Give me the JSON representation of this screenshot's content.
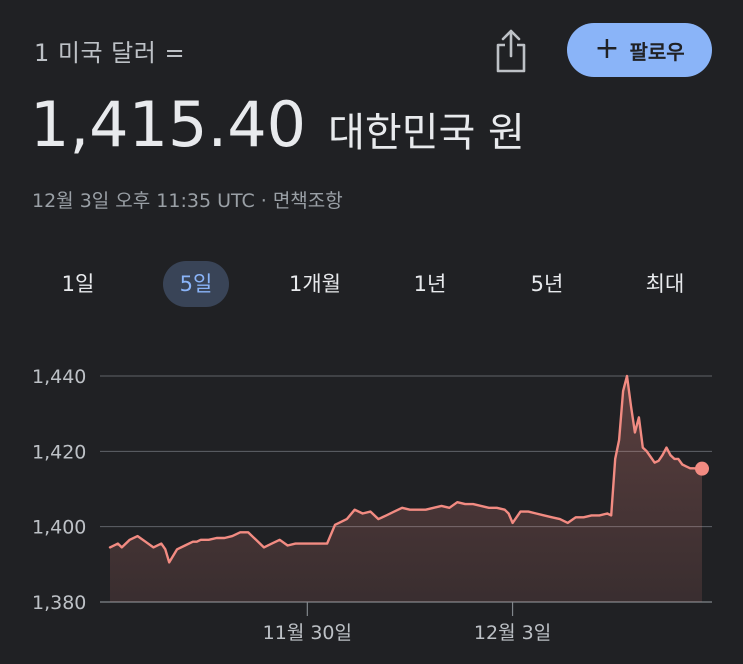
{
  "header": {
    "subtitle": "1 미국 달러 =",
    "share_icon": "share-icon",
    "follow_label": "팔로우",
    "follow_icon": "plus-icon"
  },
  "quote": {
    "price": "1,415.40",
    "currency": "대한민국 원",
    "timestamp": "12월 3일 오후 11:35 UTC",
    "separator": "·",
    "disclaimer": "면책조항"
  },
  "tabs": [
    {
      "label": "1일",
      "active": false
    },
    {
      "label": "5일",
      "active": true
    },
    {
      "label": "1개월",
      "active": false
    },
    {
      "label": "1년",
      "active": false
    },
    {
      "label": "5년",
      "active": false
    },
    {
      "label": "최대",
      "active": false
    }
  ],
  "colors": {
    "background": "#202124",
    "line": "#f28b82",
    "tab_active_bg": "#394457",
    "tab_active_text": "#8ab4f8",
    "follow_bg": "#8ab4f8"
  },
  "chart_data": {
    "type": "area",
    "yticks": [
      "1,440",
      "1,420",
      "1,400",
      "1,380"
    ],
    "ytick_values": [
      1440,
      1420,
      1400,
      1380
    ],
    "ylim": [
      1380,
      1440
    ],
    "xticks": [
      "11월 30일",
      "12월 3일"
    ],
    "xtick_positions": [
      50,
      102
    ],
    "xlim": [
      0,
      150
    ],
    "grid": true,
    "series": [
      {
        "x": [
          0,
          2,
          3,
          5,
          7,
          9,
          11,
          13,
          14,
          15,
          17,
          19,
          21,
          22,
          23,
          25,
          27,
          29,
          31,
          33,
          35,
          37,
          39,
          41,
          43,
          45,
          47,
          49,
          51,
          53,
          55,
          57,
          58,
          60,
          62,
          64,
          66,
          68,
          70,
          72,
          74,
          76,
          78,
          80,
          82,
          84,
          86,
          88,
          90,
          92,
          94,
          96,
          98,
          100,
          101,
          102,
          104,
          106,
          108,
          110,
          112,
          114,
          116,
          118,
          120,
          122,
          124,
          126,
          127,
          128,
          129,
          130,
          131,
          132,
          133,
          134,
          135,
          136,
          137,
          138,
          139,
          140,
          141,
          142,
          143,
          144,
          145,
          146,
          147,
          148,
          149,
          150
        ],
        "y": [
          1394.5,
          1395.5,
          1394.5,
          1396.5,
          1397.5,
          1396,
          1394.5,
          1395.5,
          1394,
          1390.5,
          1394,
          1395,
          1396,
          1396,
          1396.5,
          1396.5,
          1397,
          1397,
          1397.5,
          1398.5,
          1398.5,
          1396.5,
          1394.5,
          1395.5,
          1396.5,
          1395,
          1395.5,
          1395.5,
          1395.5,
          1395.5,
          1395.5,
          1400.5,
          1401,
          1402,
          1404.5,
          1403.5,
          1404,
          1402,
          1403,
          1404,
          1405,
          1404.5,
          1404.5,
          1404.5,
          1405,
          1405.5,
          1405,
          1406.5,
          1406,
          1406,
          1405.5,
          1405,
          1405,
          1404.5,
          1403.5,
          1401,
          1404,
          1404,
          1403.5,
          1403,
          1402.5,
          1402,
          1401,
          1402.5,
          1402.5,
          1403,
          1403,
          1403.5,
          1403,
          1418,
          1423,
          1436,
          1440,
          1432,
          1425,
          1429,
          1421,
          1420,
          1418.5,
          1417,
          1417.5,
          1419,
          1421,
          1419,
          1418,
          1418,
          1416.5,
          1416,
          1415.5,
          1415.5,
          1415.4,
          1415.4
        ]
      }
    ],
    "last_value": 1415.4
  }
}
